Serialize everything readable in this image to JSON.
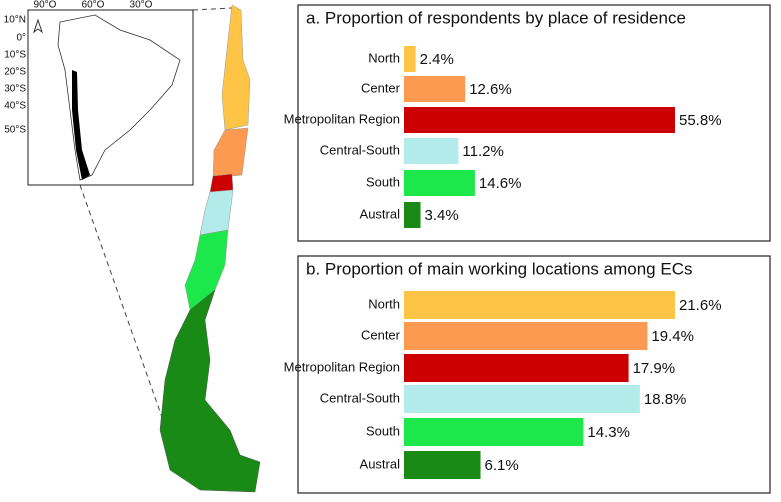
{
  "chart_data": [
    {
      "type": "bar",
      "orientation": "horizontal",
      "title": "a. Proportion of respondents by place of residence",
      "categories": [
        "North",
        "Center",
        "Metropolitan Region",
        "Central-South",
        "South",
        "Austral"
      ],
      "values": [
        2.4,
        12.6,
        55.8,
        11.2,
        14.6,
        3.4
      ],
      "value_labels": [
        "2.4%",
        "12.6%",
        "55.8%",
        "11.2%",
        "14.6%",
        "3.4%"
      ],
      "colors": [
        "#fdc446",
        "#fb9a50",
        "#cc0000",
        "#b3ebeb",
        "#1de84b",
        "#1a8a16"
      ]
    },
    {
      "type": "bar",
      "orientation": "horizontal",
      "title": "b. Proportion of main working locations among ECs",
      "categories": [
        "North",
        "Center",
        "Metropolitan Region",
        "Central-South",
        "South",
        "Austral"
      ],
      "values": [
        21.6,
        19.4,
        17.9,
        18.8,
        14.3,
        6.1
      ],
      "value_labels": [
        "21.6%",
        "19.4%",
        "17.9%",
        "18.8%",
        "14.3%",
        "6.1%"
      ],
      "colors": [
        "#fdc446",
        "#fb9a50",
        "#cc0000",
        "#b3ebeb",
        "#1de84b",
        "#1a8a16"
      ]
    }
  ],
  "map": {
    "lon_labels": [
      "90°O",
      "60°O",
      "30°O"
    ],
    "lat_labels": [
      "10°N",
      "0°",
      "10°S",
      "20°S",
      "30°S",
      "40°S",
      "50°S"
    ]
  }
}
